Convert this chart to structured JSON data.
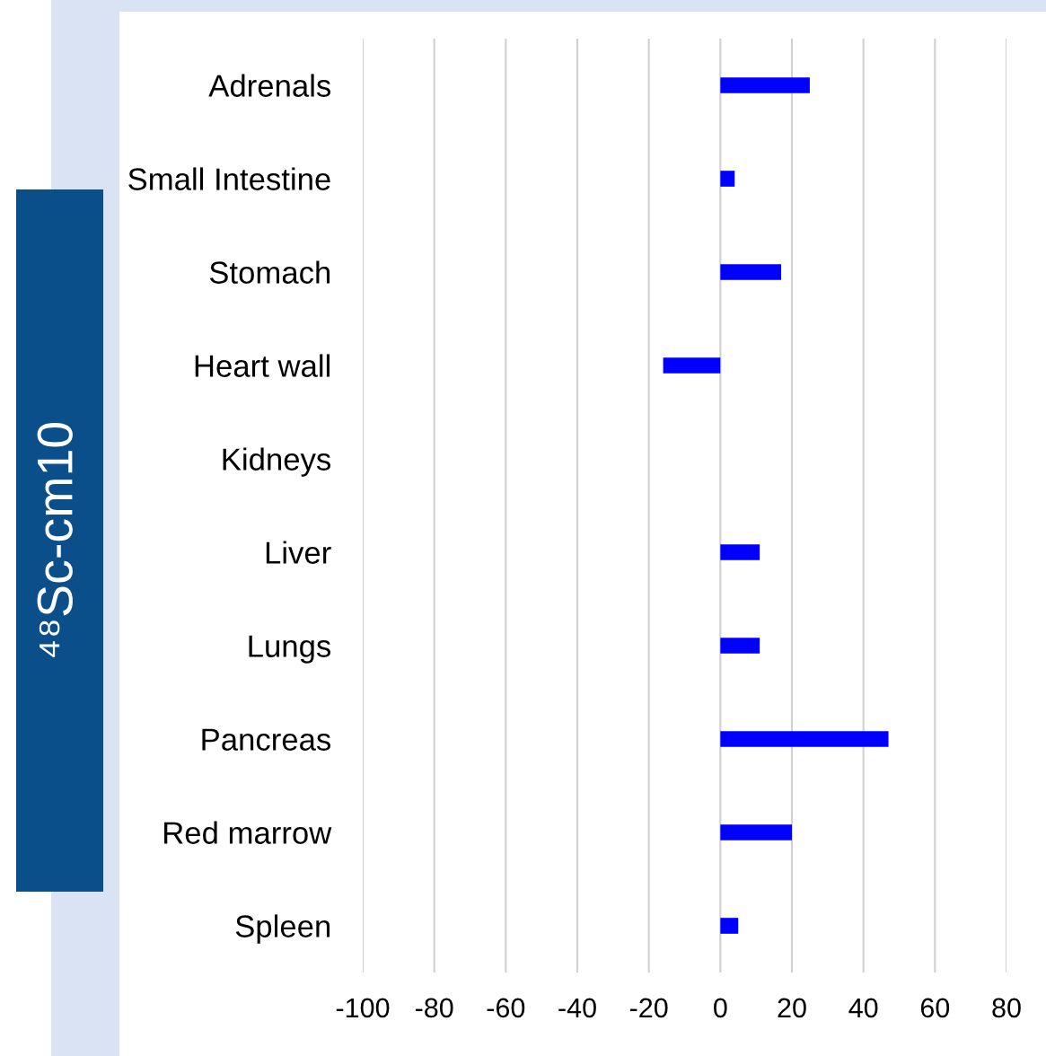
{
  "chart_data": {
    "type": "bar",
    "orientation": "horizontal",
    "ylabel": "⁴⁸Sc-cm10",
    "categories": [
      "Adrenals",
      "Small Intestine",
      "Stomach",
      "Heart wall",
      "Kidneys",
      "Liver",
      "Lungs",
      "Pancreas",
      "Red marrow",
      "Spleen"
    ],
    "values": [
      25,
      4,
      17,
      -16,
      0,
      11,
      11,
      47,
      20,
      5
    ],
    "color": "#0000ff",
    "xlim": [
      -100,
      80
    ],
    "xticks": [
      -100,
      -80,
      -60,
      -40,
      -20,
      0,
      20,
      40,
      60,
      80
    ],
    "grid": "x"
  }
}
